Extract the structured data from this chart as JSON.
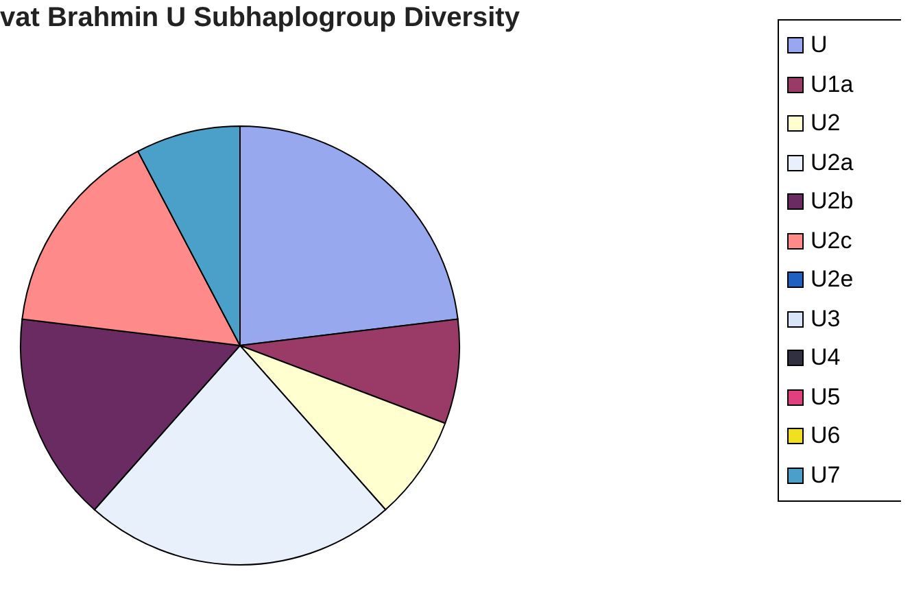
{
  "chart_data": {
    "type": "pie",
    "title": "vat Brahmin U Subhaplogroup Diversity",
    "categories": [
      "U",
      "U1a",
      "U2",
      "U2a",
      "U2b",
      "U2c",
      "U2e",
      "U3",
      "U4",
      "U5",
      "U6",
      "U7"
    ],
    "values": [
      23.08,
      7.69,
      7.69,
      23.08,
      15.38,
      15.38,
      0,
      0,
      0,
      0,
      0,
      7.7
    ],
    "colors": [
      "#98a8ee",
      "#9a3a66",
      "#ffffd0",
      "#e8f0fc",
      "#6a2a62",
      "#ff8a8a",
      "#2060c0",
      "#d8e4f8",
      "#303040",
      "#e04080",
      "#f0e020",
      "#4aa0c8"
    ],
    "legend": "right"
  }
}
